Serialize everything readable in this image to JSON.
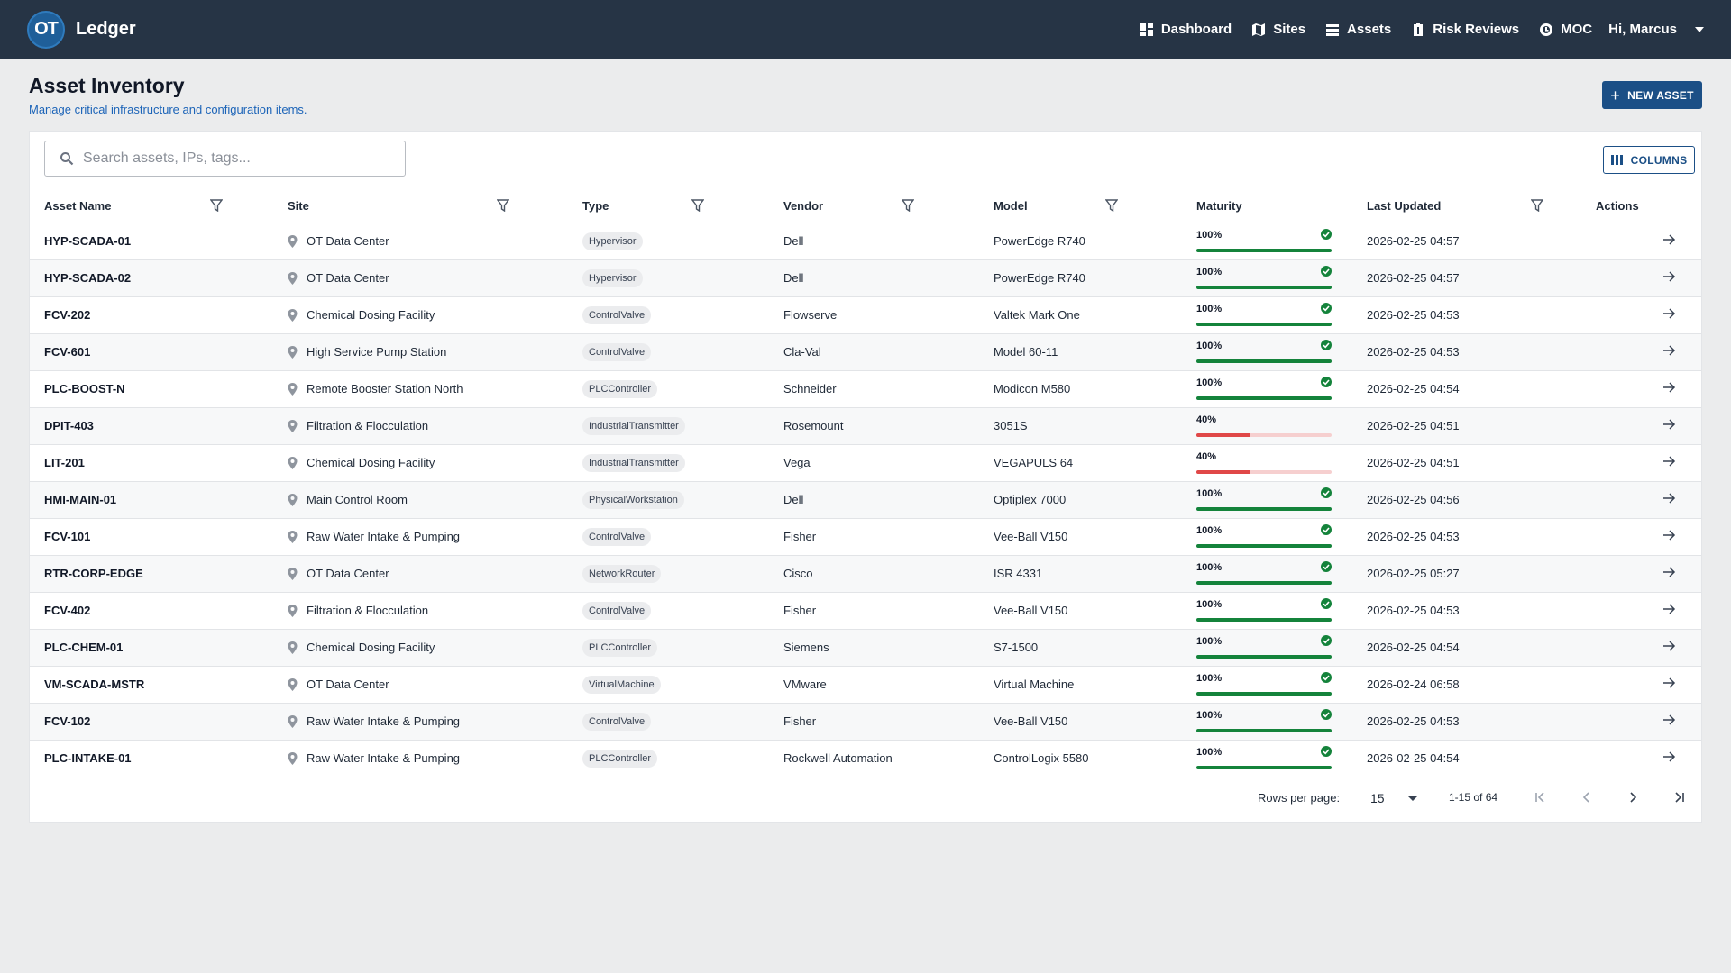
{
  "app": {
    "logo_text": "OT",
    "name": "Ledger"
  },
  "nav": [
    {
      "label": "Dashboard",
      "icon": "dashboard-icon"
    },
    {
      "label": "Sites",
      "icon": "map-icon"
    },
    {
      "label": "Assets",
      "icon": "list-icon"
    },
    {
      "label": "Risk Reviews",
      "icon": "clipboard-alert-icon"
    },
    {
      "label": "MOC",
      "icon": "settings-cycle-icon"
    }
  ],
  "user": {
    "greeting": "Hi, Marcus"
  },
  "page": {
    "title": "Asset Inventory",
    "subtitle": "Manage critical infrastructure and configuration items.",
    "new_button": "NEW ASSET"
  },
  "search": {
    "placeholder": "Search assets, IPs, tags...",
    "value": ""
  },
  "columns_button": "COLUMNS",
  "table": {
    "headers": {
      "name": "Asset Name",
      "site": "Site",
      "type": "Type",
      "vendor": "Vendor",
      "model": "Model",
      "maturity": "Maturity",
      "updated": "Last Updated",
      "actions": "Actions"
    },
    "rows": [
      {
        "name": "HYP-SCADA-01",
        "site": "OT Data Center",
        "type": "Hypervisor",
        "vendor": "Dell",
        "model": "PowerEdge R740",
        "maturity": "100%",
        "updated": "2026-02-25 04:57"
      },
      {
        "name": "HYP-SCADA-02",
        "site": "OT Data Center",
        "type": "Hypervisor",
        "vendor": "Dell",
        "model": "PowerEdge R740",
        "maturity": "100%",
        "updated": "2026-02-25 04:57"
      },
      {
        "name": "FCV-202",
        "site": "Chemical Dosing Facility",
        "type": "ControlValve",
        "vendor": "Flowserve",
        "model": "Valtek Mark One",
        "maturity": "100%",
        "updated": "2026-02-25 04:53"
      },
      {
        "name": "FCV-601",
        "site": "High Service Pump Station",
        "type": "ControlValve",
        "vendor": "Cla-Val",
        "model": "Model 60-11",
        "maturity": "100%",
        "updated": "2026-02-25 04:53"
      },
      {
        "name": "PLC-BOOST-N",
        "site": "Remote Booster Station North",
        "type": "PLCController",
        "vendor": "Schneider",
        "model": "Modicon M580",
        "maturity": "100%",
        "updated": "2026-02-25 04:54"
      },
      {
        "name": "DPIT-403",
        "site": "Filtration & Flocculation",
        "type": "IndustrialTransmitter",
        "vendor": "Rosemount",
        "model": "3051S",
        "maturity": "40%",
        "updated": "2026-02-25 04:51"
      },
      {
        "name": "LIT-201",
        "site": "Chemical Dosing Facility",
        "type": "IndustrialTransmitter",
        "vendor": "Vega",
        "model": "VEGAPULS 64",
        "maturity": "40%",
        "updated": "2026-02-25 04:51"
      },
      {
        "name": "HMI-MAIN-01",
        "site": "Main Control Room",
        "type": "PhysicalWorkstation",
        "vendor": "Dell",
        "model": "Optiplex 7000",
        "maturity": "100%",
        "updated": "2026-02-25 04:56"
      },
      {
        "name": "FCV-101",
        "site": "Raw Water Intake & Pumping",
        "type": "ControlValve",
        "vendor": "Fisher",
        "model": "Vee-Ball V150",
        "maturity": "100%",
        "updated": "2026-02-25 04:53"
      },
      {
        "name": "RTR-CORP-EDGE",
        "site": "OT Data Center",
        "type": "NetworkRouter",
        "vendor": "Cisco",
        "model": "ISR 4331",
        "maturity": "100%",
        "updated": "2026-02-25 05:27"
      },
      {
        "name": "FCV-402",
        "site": "Filtration & Flocculation",
        "type": "ControlValve",
        "vendor": "Fisher",
        "model": "Vee-Ball V150",
        "maturity": "100%",
        "updated": "2026-02-25 04:53"
      },
      {
        "name": "PLC-CHEM-01",
        "site": "Chemical Dosing Facility",
        "type": "PLCController",
        "vendor": "Siemens",
        "model": "S7-1500",
        "maturity": "100%",
        "updated": "2026-02-25 04:54"
      },
      {
        "name": "VM-SCADA-MSTR",
        "site": "OT Data Center",
        "type": "VirtualMachine",
        "vendor": "VMware",
        "model": "Virtual Machine",
        "maturity": "100%",
        "updated": "2026-02-24 06:58"
      },
      {
        "name": "FCV-102",
        "site": "Raw Water Intake & Pumping",
        "type": "ControlValve",
        "vendor": "Fisher",
        "model": "Vee-Ball V150",
        "maturity": "100%",
        "updated": "2026-02-25 04:53"
      },
      {
        "name": "PLC-INTAKE-01",
        "site": "Raw Water Intake & Pumping",
        "type": "PLCController",
        "vendor": "Rockwell Automation",
        "model": "ControlLogix 5580",
        "maturity": "100%",
        "updated": "2026-02-25 04:54"
      }
    ]
  },
  "pagination": {
    "rows_label": "Rows per page:",
    "rows_value": "15",
    "range": "1-15 of 64"
  },
  "colors": {
    "topbar": "#263445",
    "primary": "#1b4f86",
    "good": "#14833b",
    "bad": "#e04848"
  }
}
